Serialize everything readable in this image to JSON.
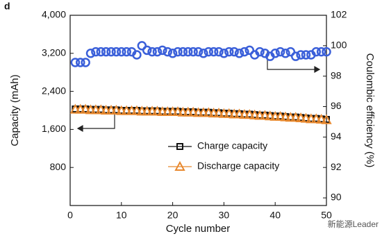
{
  "panel_label": "d",
  "watermark": "新能源Leader",
  "chart_data": {
    "type": "scatter",
    "xlabel": "Cycle number",
    "ylabel": "Capacity (mAh)",
    "y2label": "Coulombic efficiency (%)",
    "xlim": [
      0,
      50
    ],
    "xticks": [
      0,
      10,
      20,
      30,
      40,
      50
    ],
    "ylim": [
      0,
      4000
    ],
    "yticks": [
      {
        "value": 800,
        "label": "800"
      },
      {
        "value": 1600,
        "label": "1,600"
      },
      {
        "value": 2400,
        "label": "2,400"
      },
      {
        "value": 3200,
        "label": "3,200"
      },
      {
        "value": 4000,
        "label": "4,000"
      }
    ],
    "y2lim": [
      89.5,
      102
    ],
    "y2ticks": [
      90,
      92,
      94,
      96,
      98,
      100,
      102
    ],
    "x": [
      1,
      2,
      3,
      4,
      5,
      6,
      7,
      8,
      9,
      10,
      11,
      12,
      13,
      14,
      15,
      16,
      17,
      18,
      19,
      20,
      21,
      22,
      23,
      24,
      25,
      26,
      27,
      28,
      29,
      30,
      31,
      32,
      33,
      34,
      35,
      36,
      37,
      38,
      39,
      40,
      41,
      42,
      43,
      44,
      45,
      46,
      47,
      48,
      49,
      50
    ],
    "series": [
      {
        "name": "Charge capacity",
        "color": "#111111",
        "marker": "square",
        "values": [
          2030,
          2030,
          2030,
          2020,
          2020,
          2020,
          2010,
          2010,
          2010,
          2000,
          2000,
          2000,
          2000,
          1990,
          1990,
          1990,
          1990,
          1980,
          1980,
          1980,
          1980,
          1970,
          1970,
          1970,
          1960,
          1960,
          1960,
          1950,
          1950,
          1940,
          1940,
          1930,
          1930,
          1920,
          1920,
          1910,
          1900,
          1900,
          1890,
          1880,
          1880,
          1870,
          1860,
          1860,
          1850,
          1840,
          1830,
          1830,
          1820,
          1810
        ]
      },
      {
        "name": "Discharge capacity",
        "color": "#e8892f",
        "marker": "triangle",
        "values": [
          2020,
          2020,
          2020,
          2010,
          2010,
          2010,
          2000,
          2000,
          2000,
          1990,
          1990,
          1990,
          1990,
          1980,
          1980,
          1980,
          1980,
          1970,
          1970,
          1970,
          1970,
          1960,
          1960,
          1960,
          1950,
          1950,
          1950,
          1940,
          1940,
          1930,
          1930,
          1920,
          1920,
          1910,
          1910,
          1900,
          1890,
          1890,
          1880,
          1870,
          1870,
          1860,
          1850,
          1850,
          1840,
          1830,
          1820,
          1820,
          1810,
          1800
        ]
      },
      {
        "axis": "y2",
        "color": "#3a5fd9",
        "marker": "circle",
        "values": [
          98.9,
          98.9,
          98.9,
          99.5,
          99.6,
          99.6,
          99.6,
          99.6,
          99.6,
          99.6,
          99.6,
          99.6,
          99.4,
          100.0,
          99.7,
          99.6,
          99.6,
          99.7,
          99.6,
          99.5,
          99.6,
          99.6,
          99.6,
          99.6,
          99.6,
          99.5,
          99.6,
          99.6,
          99.6,
          99.5,
          99.6,
          99.6,
          99.5,
          99.6,
          99.7,
          99.4,
          99.6,
          99.5,
          99.3,
          99.5,
          99.6,
          99.5,
          99.6,
          99.3,
          99.4,
          99.4,
          99.4,
          99.6,
          99.6,
          99.6
        ]
      }
    ]
  }
}
